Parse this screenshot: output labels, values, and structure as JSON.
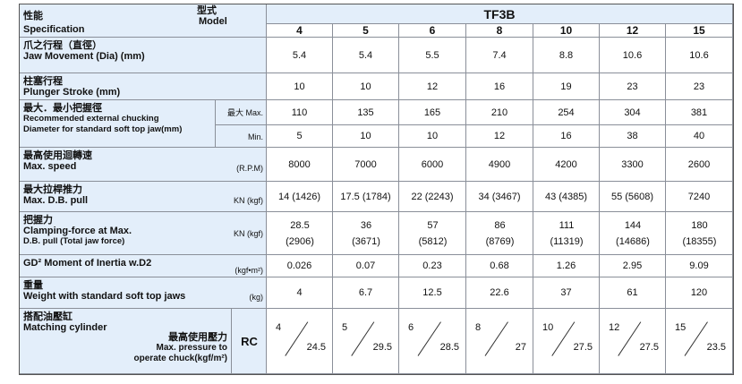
{
  "header": {
    "spec_cn": "性能",
    "spec_en": "Specification",
    "model_cn": "型式",
    "model_en": "Model",
    "series": "TF3B",
    "models": [
      "4",
      "5",
      "6",
      "8",
      "10",
      "12",
      "15"
    ]
  },
  "rows": [
    {
      "label": [
        "爪之行程（直徑）",
        "Jaw Movement (Dia) (mm)"
      ],
      "values": [
        "5.4",
        "5.4",
        "5.5",
        "7.4",
        "8.8",
        "10.6",
        "10.6"
      ]
    },
    {
      "label": [
        "柱塞行程",
        "Plunger Stroke (mm)"
      ],
      "values": [
        "10",
        "10",
        "12",
        "16",
        "19",
        "23",
        "23"
      ]
    },
    {
      "label": [
        "最大．最小把握徑",
        "Recommended external chucking",
        "Diameter for standard soft top jaw(mm)"
      ],
      "sub": [
        {
          "unit": "最大 Max.",
          "values": [
            "110",
            "135",
            "165",
            "210",
            "254",
            "304",
            "381"
          ]
        },
        {
          "unit": "Min.",
          "values": [
            "5",
            "10",
            "10",
            "12",
            "16",
            "38",
            "40"
          ]
        }
      ]
    },
    {
      "label": [
        "最高使用迴轉速",
        "Max. speed"
      ],
      "unit": "(R.P.M)",
      "values": [
        "8000",
        "7000",
        "6000",
        "4900",
        "4200",
        "3300",
        "2600"
      ]
    },
    {
      "label": [
        "最大拉桿推力",
        "Max. D.B. pull"
      ],
      "unit": "KN (kgf)",
      "values": [
        "14 (1426)",
        "17.5 (1784)",
        "22 (2243)",
        "34 (3467)",
        "43 (4385)",
        "55 (5608)",
        "7240"
      ]
    },
    {
      "label": [
        "把握力",
        "Clamping-force at Max.",
        "D.B. pull (Total jaw force)"
      ],
      "unit": "KN (kgf)",
      "values": [
        [
          "28.5",
          "(2906)"
        ],
        [
          "36",
          "(3671)"
        ],
        [
          "57",
          "(5812)"
        ],
        [
          "86",
          "(8769)"
        ],
        [
          "111",
          "(11319)"
        ],
        [
          "144",
          "(14686)"
        ],
        [
          "180",
          "(18355)"
        ]
      ]
    },
    {
      "label": [
        "GD² Moment of Inertia w.D2"
      ],
      "unit": "(kgf•m²)",
      "values": [
        "0.026",
        "0.07",
        "0.23",
        "0.68",
        "1.26",
        "2.95",
        "9.09"
      ]
    },
    {
      "label": [
        "重量",
        "Weight with standard soft top jaws"
      ],
      "unit": "(kg)",
      "values": [
        "4",
        "6.7",
        "12.5",
        "22.6",
        "37",
        "61",
        "120"
      ]
    },
    {
      "label": [
        "搭配油壓缸",
        "Matching cylinder"
      ],
      "pressure_label": [
        "最高使用壓力",
        "Max. pressure to",
        "operate chuck(kgf/m²)"
      ],
      "unit": "RC",
      "values": [
        [
          "4",
          "24.5"
        ],
        [
          "5",
          "29.5"
        ],
        [
          "6",
          "28.5"
        ],
        [
          "8",
          "27"
        ],
        [
          "10",
          "27.5"
        ],
        [
          "12",
          "27.5"
        ],
        [
          "15",
          "23.5"
        ]
      ]
    }
  ]
}
